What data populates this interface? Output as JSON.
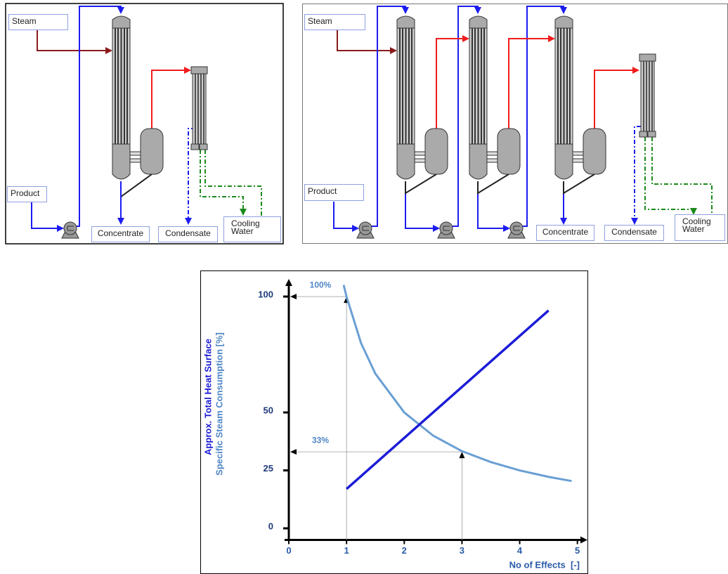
{
  "diagrams": [
    {
      "labels": {
        "steam": "Steam",
        "product": "Product",
        "concentrate": "Concentrate",
        "condensate": "Condensate",
        "cooling_water": "Cooling Water"
      }
    },
    {
      "labels": {
        "steam": "Steam",
        "product": "Product",
        "concentrate": "Concentrate",
        "condensate": "Condensate",
        "cooling_water": "Cooling Water"
      }
    }
  ],
  "chart_data": {
    "type": "line",
    "x_label": "No of Effects  [-]",
    "y_labels": [
      "Approx. Total Heat Surface",
      "Specific Steam Consumption [%]"
    ],
    "xlim": [
      0,
      5.15
    ],
    "ylim": [
      -5,
      107
    ],
    "xticks": [
      0,
      1,
      2,
      3,
      4,
      5
    ],
    "yticks": [
      0,
      25,
      50,
      100
    ],
    "grid": false,
    "series": [
      {
        "color": "#6a9fd4",
        "x": [
          0.95,
          1,
          1.25,
          1.5,
          2,
          2.5,
          3,
          3.5,
          4,
          4.5,
          4.9
        ],
        "values": [
          105,
          100,
          80,
          66.7,
          50,
          40,
          33.3,
          28.6,
          25,
          22.2,
          20.4
        ]
      },
      {
        "color": "#1c1cd8",
        "x": [
          1,
          4.5
        ],
        "values": [
          17,
          94
        ]
      }
    ],
    "guides": [
      {
        "x": 1,
        "y": 100,
        "label": "100%"
      },
      {
        "x": 3,
        "y": 33,
        "label": "33%"
      }
    ]
  }
}
